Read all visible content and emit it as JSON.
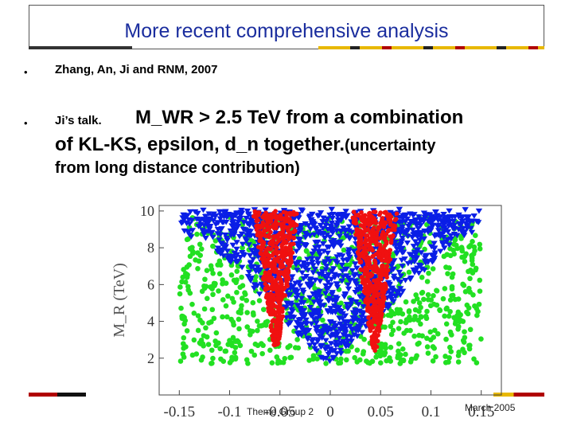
{
  "header": {
    "title": "More recent comprehensive analysis"
  },
  "bullets": {
    "b1": {
      "glyph": "•",
      "text": "Zhang, An, Ji and RNM, 2007"
    },
    "b2": {
      "glyph": "•",
      "prefix": "Ji’s talk.",
      "line1": "M_WR > 2.5 TeV from a combination",
      "line2": "of KL-KS, epsilon, d_n together.",
      "line2_tail": "(uncertainty",
      "line3": "from long distance contribution)"
    }
  },
  "chart_data": {
    "type": "scatter",
    "title": "",
    "xlabel": "",
    "ylabel": "M_R (TeV)",
    "xlim": [
      -0.17,
      0.17
    ],
    "ylim": [
      0,
      10.3
    ],
    "x_ticks": [
      "-0.15",
      "-0.1",
      "-0.05",
      "0",
      "0.05",
      "0.1",
      "0.15"
    ],
    "x_tick_values": [
      -0.15,
      -0.1,
      -0.05,
      0,
      0.05,
      0.1,
      0.15
    ],
    "y_ticks": [
      "2",
      "4",
      "6",
      "8",
      "10"
    ],
    "y_tick_values": [
      2,
      4,
      6,
      8,
      10
    ],
    "series": [
      {
        "name": "green",
        "marker": "circle",
        "color": "#22e022"
      },
      {
        "name": "blue",
        "marker": "triangle",
        "color": "#0a1ee6"
      },
      {
        "name": "red",
        "marker": "circle",
        "color": "#f01010"
      }
    ],
    "regions": {
      "red_left": {
        "x_center": -0.054,
        "half_width_at_top": 0.022,
        "y_min": 2.6
      },
      "red_right": {
        "x_center": 0.044,
        "half_width_at_top": 0.022,
        "y_min": 2.4
      },
      "blue_center": {
        "x_center": 0.0,
        "half_width_at_top": 0.075,
        "y_min": 1.8
      },
      "green_fill": {
        "x_min": -0.15,
        "x_max": 0.15,
        "y_min": 1.7,
        "y_max": 9.7
      }
    }
  },
  "footer": {
    "left": "Theme Group 2",
    "right": "March 2005"
  }
}
